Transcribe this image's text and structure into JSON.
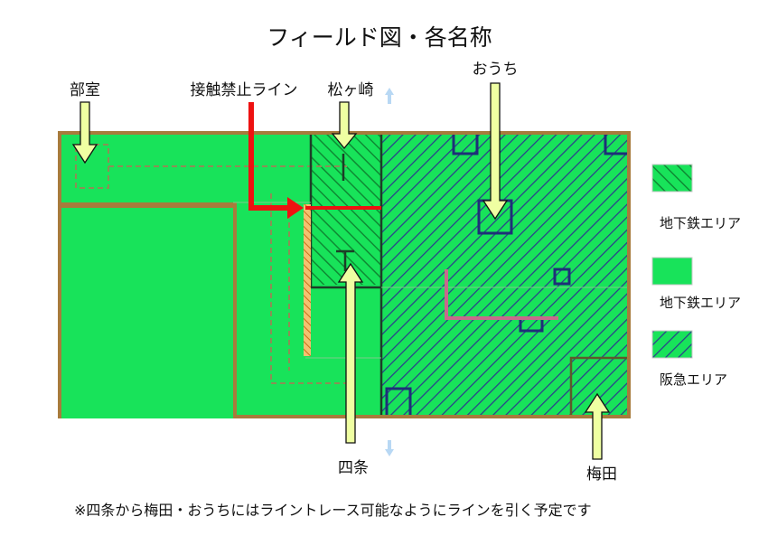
{
  "title": "フィールド図・各名称",
  "labels": {
    "bukai": "部室",
    "contact_line": "接触禁止ライン",
    "matsugasaki": "松ヶ崎",
    "ouchi": "おうち",
    "shijo": "四条",
    "umeda": "梅田"
  },
  "legend": [
    {
      "label": "地下鉄エリア",
      "pattern": "green-hatch"
    },
    {
      "label": "地下鉄エリア",
      "pattern": "green-solid"
    },
    {
      "label": "阪急エリア",
      "pattern": "blue-hatch"
    }
  ],
  "footnote": "※四条から梅田・おうちにはライントレース可能なようにラインを引く予定です",
  "colors": {
    "green": "#18e35a",
    "hatch_green": "#0f8a34",
    "hatch_blue": "#2b3d8c",
    "wall": "#a87b3c",
    "dark_line": "#1d3d27",
    "navy": "#1e2f78",
    "red": "#ee1111",
    "pink": "#c76a8c",
    "orange": "#e8932a",
    "arrow_fill": "#efffa2",
    "arrow_stroke": "#111111"
  }
}
